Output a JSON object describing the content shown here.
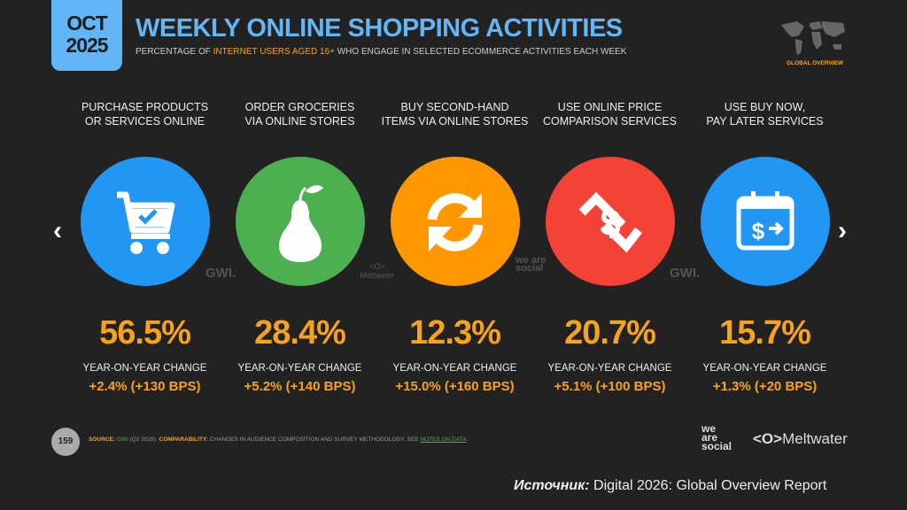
{
  "header": {
    "month": "OCT",
    "year": "2025",
    "title": "WEEKLY ONLINE SHOPPING ACTIVITIES",
    "subtitle_pre": "PERCENTAGE OF ",
    "subtitle_highlight": "INTERNET USERS AGED 16+",
    "subtitle_post": " WHO ENGAGE IN SELECTED ECOMMERCE ACTIVITIES EACH WEEK",
    "badge": "GLOBAL OVERVIEW"
  },
  "colors": {
    "accent": "#f7a21b",
    "title": "#63b6f5",
    "background": "#222222"
  },
  "activities": [
    {
      "label1": "PURCHASE PRODUCTS",
      "label2": "OR SERVICES ONLINE",
      "icon": "shopping-cart-check-icon",
      "color": "#2196f3",
      "value": "56.5%",
      "yoy_label": "YEAR-ON-YEAR CHANGE",
      "change": "+2.4% (+130 BPS)"
    },
    {
      "label1": "ORDER GROCERIES",
      "label2": "VIA ONLINE STORES",
      "icon": "pear-icon",
      "color": "#4caf50",
      "value": "28.4%",
      "yoy_label": "YEAR-ON-YEAR CHANGE",
      "change": "+5.2% (+140 BPS)"
    },
    {
      "label1": "BUY SECOND-HAND",
      "label2": "ITEMS VIA ONLINE STORES",
      "icon": "refresh-icon",
      "color": "#ff9800",
      "value": "12.3%",
      "yoy_label": "YEAR-ON-YEAR CHANGE",
      "change": "+15.0% (+160 BPS)"
    },
    {
      "label1": "USE ONLINE PRICE",
      "label2": "COMPARISON SERVICES",
      "icon": "dollar-arrows-icon",
      "color": "#f44336",
      "value": "20.7%",
      "yoy_label": "YEAR-ON-YEAR CHANGE",
      "change": "+5.1% (+100 BPS)"
    },
    {
      "label1": "USE BUY NOW,",
      "label2": "PAY LATER SERVICES",
      "icon": "calendar-dollar-icon",
      "color": "#2196f3",
      "value": "15.7%",
      "yoy_label": "YEAR-ON-YEAR CHANGE",
      "change": "+1.3% (+20 BPS)"
    }
  ],
  "watermarks": {
    "gwi": "GWI.",
    "meltwater": "Meltwater",
    "was": "we are social"
  },
  "footer": {
    "page": "159",
    "source_label": "SOURCE:",
    "source": "GWI",
    "source_period": "(Q2 2025).",
    "comp_label": "COMPARABILITY:",
    "comp_text": "CHANGES IN AUDIENCE COMPOSITION AND SURVEY METHODOLOGY. SEE",
    "notes_link": "NOTES ON DATA",
    "notes_end": ".",
    "logo_was_1": "we",
    "logo_was_2": "are",
    "logo_was_3": "social",
    "logo_mw": "Meltwater",
    "caption_label": "Источник:",
    "caption_text": " Digital 2026: Global Overview Report"
  }
}
